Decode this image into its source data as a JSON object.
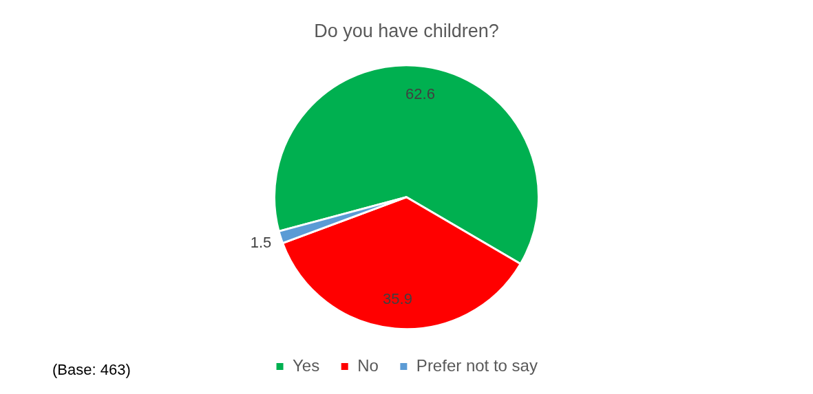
{
  "chart_data": {
    "type": "pie",
    "title": "Do you have children?",
    "categories": [
      "Yes",
      "No",
      "Prefer not to say"
    ],
    "values": [
      62.6,
      35.9,
      1.5
    ],
    "colors": [
      "#00b050",
      "#ff0000",
      "#5b9bd5"
    ],
    "data_labels": true,
    "legend": "bottom",
    "annotations": [
      "(Base: 463)"
    ]
  }
}
